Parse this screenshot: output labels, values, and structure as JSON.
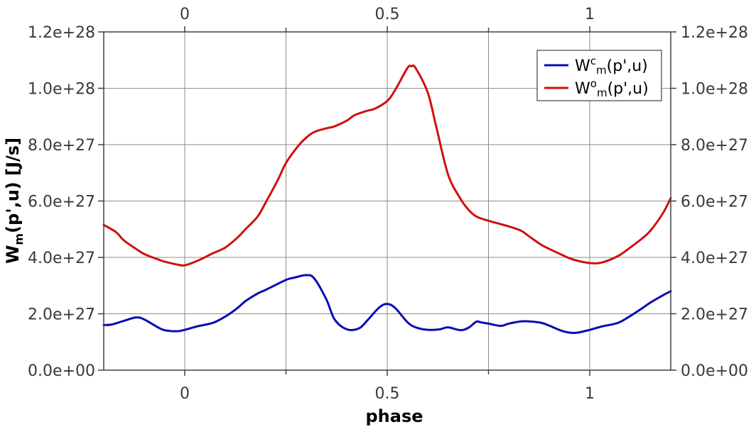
{
  "chart_data": {
    "type": "line",
    "xlabel": "phase",
    "ylabel": "W_m(p',u) [J/s]",
    "xlim": [
      -0.2,
      1.2
    ],
    "ylim": [
      0,
      1.2e+28
    ],
    "x_ticks": [
      {
        "value": 0,
        "label": "0"
      },
      {
        "value": 0.5,
        "label": "0.5"
      },
      {
        "value": 1,
        "label": "1"
      }
    ],
    "x_minor_ticks": [
      0.25,
      0.75
    ],
    "y_ticks": [
      {
        "value": 0,
        "label": "0.0e+00"
      },
      {
        "value": 2e+27,
        "label": "2.0e+27"
      },
      {
        "value": 4e+27,
        "label": "4.0e+27"
      },
      {
        "value": 6e+27,
        "label": "6.0e+27"
      },
      {
        "value": 8e+27,
        "label": "8.0e+27"
      },
      {
        "value": 1e+28,
        "label": "1.0e+28"
      },
      {
        "value": 1.2e+28,
        "label": "1.2e+28"
      }
    ],
    "grid": true,
    "legend_position": "top-right",
    "series": [
      {
        "name": "W^c_m(p',u)",
        "color": "#0b0bb3",
        "x": [
          -0.2,
          -0.18,
          -0.15,
          -0.12,
          -0.1,
          -0.07,
          -0.05,
          -0.02,
          0,
          0.03,
          0.07,
          0.1,
          0.13,
          0.15,
          0.18,
          0.2,
          0.25,
          0.27,
          0.3,
          0.32,
          0.35,
          0.37,
          0.4,
          0.43,
          0.45,
          0.48,
          0.5,
          0.52,
          0.55,
          0.57,
          0.6,
          0.63,
          0.65,
          0.68,
          0.7,
          0.72,
          0.73,
          0.75,
          0.78,
          0.8,
          0.83,
          0.85,
          0.88,
          0.9,
          0.93,
          0.95,
          0.97,
          1,
          1.03,
          1.07,
          1.1,
          1.13,
          1.15,
          1.18,
          1.2
        ],
        "y": [
          1.6e+27,
          1.62e+27,
          1.75e+27,
          1.87e+27,
          1.8e+27,
          1.55e+27,
          1.42e+27,
          1.38e+27,
          1.43e+27,
          1.55e+27,
          1.68e+27,
          1.9e+27,
          2.2e+27,
          2.45e+27,
          2.72e+27,
          2.85e+27,
          3.2e+27,
          3.28e+27,
          3.37e+27,
          3.25e+27,
          2.5e+27,
          1.8e+27,
          1.45e+27,
          1.48e+27,
          1.75e+27,
          2.22e+27,
          2.35e+27,
          2.2e+27,
          1.7e+27,
          1.52e+27,
          1.43e+27,
          1.45e+27,
          1.52e+27,
          1.42e+27,
          1.5e+27,
          1.72e+27,
          1.7e+27,
          1.65e+27,
          1.57e+27,
          1.65e+27,
          1.73e+27,
          1.73e+27,
          1.68e+27,
          1.58e+27,
          1.4e+27,
          1.33e+27,
          1.33e+27,
          1.43e+27,
          1.55e+27,
          1.68e+27,
          1.92e+27,
          2.2e+27,
          2.4e+27,
          2.65e+27,
          2.8e+27
        ]
      },
      {
        "name": "W^o_m(p',u)",
        "color": "#d01010",
        "x": [
          -0.2,
          -0.17,
          -0.15,
          -0.12,
          -0.1,
          -0.07,
          -0.05,
          -0.02,
          0,
          0.03,
          0.07,
          0.1,
          0.13,
          0.15,
          0.18,
          0.2,
          0.23,
          0.25,
          0.28,
          0.3,
          0.32,
          0.35,
          0.37,
          0.4,
          0.42,
          0.45,
          0.47,
          0.5,
          0.52,
          0.55,
          0.56,
          0.57,
          0.6,
          0.62,
          0.65,
          0.68,
          0.7,
          0.72,
          0.75,
          0.78,
          0.8,
          0.83,
          0.85,
          0.88,
          0.9,
          0.93,
          0.95,
          0.97,
          1,
          1.03,
          1.07,
          1.1,
          1.13,
          1.15,
          1.18,
          1.2
        ],
        "y": [
          5.15e+27,
          4.9e+27,
          4.6e+27,
          4.3e+27,
          4.12e+27,
          3.95e+27,
          3.85e+27,
          3.75e+27,
          3.72e+27,
          3.87e+27,
          4.15e+27,
          4.35e+27,
          4.7e+27,
          5e+27,
          5.45e+27,
          5.95e+27,
          6.75e+27,
          7.35e+27,
          7.95e+27,
          8.25e+27,
          8.45e+27,
          8.58e+27,
          8.65e+27,
          8.85e+27,
          9.05e+27,
          9.2e+27,
          9.28e+27,
          9.55e+27,
          9.95e+27,
          1.072e+28,
          1.078e+28,
          1.072e+28,
          9.85e+27,
          8.7e+27,
          6.95e+27,
          6.1e+27,
          5.7e+27,
          5.45e+27,
          5.3e+27,
          5.18e+27,
          5.1e+27,
          4.95e+27,
          4.75e+27,
          4.45e+27,
          4.3e+27,
          4.1e+27,
          3.97e+27,
          3.88e+27,
          3.8e+27,
          3.82e+27,
          4.05e+27,
          4.35e+27,
          4.68e+27,
          4.95e+27,
          5.55e+27,
          6.1e+27
        ]
      }
    ]
  }
}
